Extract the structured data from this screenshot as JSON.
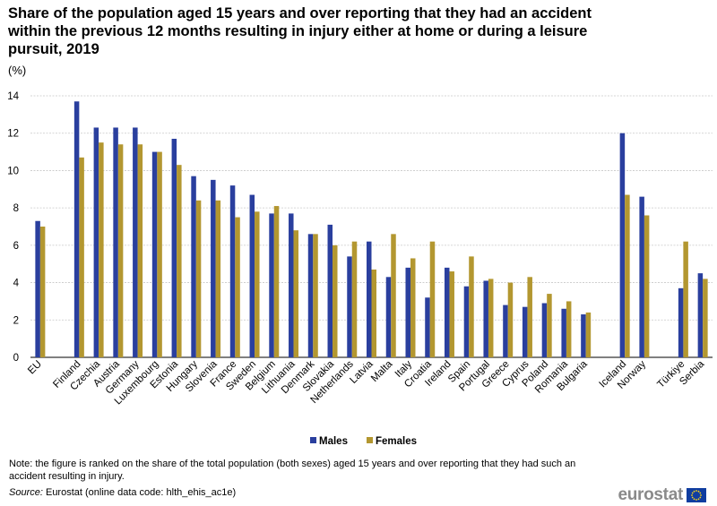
{
  "chart_data": {
    "type": "bar",
    "title": "Share of the population aged 15 years and over reporting that they had an accident within the previous 12 months resulting in injury either at home or during a leisure pursuit, 2019",
    "unit_label": "(%)",
    "xlabel": "",
    "ylabel": "",
    "ylim": [
      0,
      14
    ],
    "yticks": [
      0,
      2,
      4,
      6,
      8,
      10,
      12,
      14
    ],
    "grid": true,
    "legend_position": "bottom-center",
    "categories": [
      "EU",
      "Finland",
      "Czechia",
      "Austria",
      "Germany",
      "Luxembourg",
      "Estonia",
      "Hungary",
      "Slovenia",
      "France",
      "Sweden",
      "Belgium",
      "Lithuania",
      "Denmark",
      "Slovakia",
      "Netherlands",
      "Latvia",
      "Malta",
      "Italy",
      "Croatia",
      "Ireland",
      "Spain",
      "Portugal",
      "Greece",
      "Cyprus",
      "Poland",
      "Romania",
      "Bulgaria",
      "Iceland",
      "Norway",
      "Türkiye",
      "Serbia"
    ],
    "series": [
      {
        "name": "Males",
        "color": "#2a3f9e",
        "values": [
          7.3,
          13.7,
          12.3,
          12.3,
          12.3,
          11.0,
          11.7,
          9.7,
          9.5,
          9.2,
          8.7,
          7.7,
          7.7,
          6.6,
          7.1,
          5.4,
          6.2,
          4.3,
          4.8,
          3.2,
          4.8,
          3.8,
          4.1,
          2.8,
          2.7,
          2.9,
          2.6,
          2.3,
          12.0,
          8.6,
          3.7,
          4.5
        ]
      },
      {
        "name": "Females",
        "color": "#b39730",
        "values": [
          7.0,
          10.7,
          11.5,
          11.4,
          11.4,
          11.0,
          10.3,
          8.4,
          8.4,
          7.5,
          7.8,
          8.1,
          6.8,
          6.6,
          6.0,
          6.2,
          4.7,
          6.6,
          5.3,
          6.2,
          4.6,
          5.4,
          4.2,
          4.0,
          4.3,
          3.4,
          3.0,
          2.4,
          8.7,
          7.6,
          6.2,
          4.2
        ]
      }
    ]
  },
  "footer": {
    "note": "Note: the figure is ranked on the share of the total population (both sexes) aged 15 years and over reporting that they had such an accident resulting in injury.",
    "source_label": "Source:",
    "source_text": " Eurostat (online data code: hlth_ehis_ac1e)",
    "logo_text": "eurostat"
  }
}
